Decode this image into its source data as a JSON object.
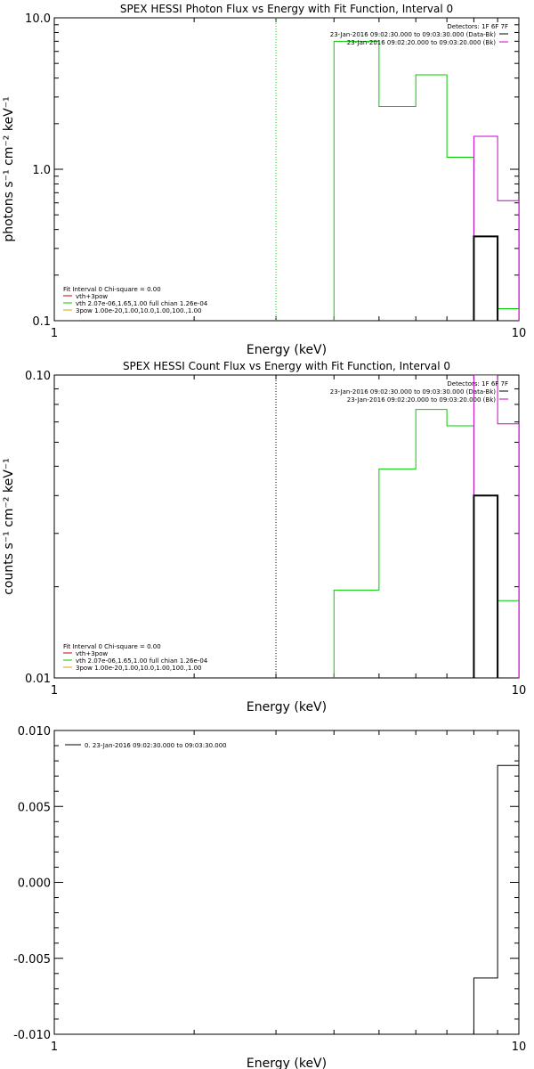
{
  "chart_data": [
    {
      "type": "line",
      "title": "SPEX HESSI Photon Flux vs Energy with Fit Function, Interval 0",
      "xlabel": "Energy (keV)",
      "ylabel": "photons s⁻¹ cm⁻² keV⁻¹",
      "xscale": "log",
      "yscale": "log",
      "xlim": [
        1,
        10
      ],
      "ylim": [
        0.1,
        10
      ],
      "xticks": [
        {
          "value": 1,
          "label": "1"
        },
        {
          "value": 10,
          "label": "10"
        }
      ],
      "yticks": [
        {
          "value": 0.1,
          "label": "0.1"
        },
        {
          "value": 1,
          "label": "1.0"
        },
        {
          "value": 10,
          "label": "10.0"
        }
      ],
      "vlines": [
        {
          "x": 3.0,
          "color": "#00cc00",
          "style": "dotted"
        }
      ],
      "legend_top": {
        "header": "Detectors: 1F 6F 7F",
        "entries": [
          {
            "text": "23-Jan-2016 09:02:30.000 to 09:03:30.000 (Data-Bk)",
            "color": "#000000"
          },
          {
            "text": "23-Jan-2016 09:02:20.000 to 09:03:20.000 (Bk)",
            "color": "#cc00cc"
          }
        ]
      },
      "legend_bottom": {
        "header": "Fit Interval 0   Chi-square = 0.00",
        "entries": [
          {
            "text": "vth+3pow",
            "color": "#cc0000"
          },
          {
            "text": "vth 2.07e-06,1.65,1.00  full chian 1.26e-04",
            "color": "#00cc00"
          },
          {
            "text": "3pow 1.00e-20,1.00,10.0,1.00,100.,1.00",
            "color": "#ccaa00"
          }
        ]
      },
      "series": [
        {
          "color": "#00cc00",
          "line_width": 1,
          "edges": [
            4,
            5,
            6,
            7,
            8,
            9,
            10
          ],
          "values": [
            7.0,
            2.6,
            4.2,
            1.2,
            0.36,
            0.12
          ]
        },
        {
          "color": "#cc00cc",
          "line_width": 1,
          "edges": [
            8,
            9,
            10
          ],
          "values": [
            1.65,
            0.62
          ]
        },
        {
          "color": "#000000",
          "line_width": 2,
          "edges": [
            8,
            9
          ],
          "values": [
            0.36
          ]
        }
      ]
    },
    {
      "type": "line",
      "title": "SPEX HESSI Count Flux vs Energy with Fit Function, Interval 0",
      "xlabel": "Energy (keV)",
      "ylabel": "counts s⁻¹ cm⁻² keV⁻¹",
      "xscale": "log",
      "yscale": "log",
      "xlim": [
        1,
        10
      ],
      "ylim": [
        0.01,
        0.1
      ],
      "xticks": [
        {
          "value": 1,
          "label": "1"
        },
        {
          "value": 10,
          "label": "10"
        }
      ],
      "yticks": [
        {
          "value": 0.01,
          "label": "0.01"
        },
        {
          "value": 0.1,
          "label": "0.10"
        }
      ],
      "vlines": [
        {
          "x": 3.0,
          "color": "#000000",
          "style": "dotted"
        }
      ],
      "legend_top": {
        "header": "Detectors: 1F 6F 7F",
        "entries": [
          {
            "text": "23-Jan-2016 09:02:30.000 to 09:03:30.000 (Data-Bk)",
            "color": "#000000"
          },
          {
            "text": "23-Jan-2016 09:02:20.000 to 09:03:20.000 (Bk)",
            "color": "#cc00cc"
          }
        ]
      },
      "legend_bottom": {
        "header": "Fit Interval 0   Chi-square = 0.00",
        "entries": [
          {
            "text": "vth+3pow",
            "color": "#cc0000"
          },
          {
            "text": "vth 2.07e-06,1.65,1.00  full chian 1.26e-04",
            "color": "#00cc00"
          },
          {
            "text": "3pow 1.00e-20,1.00,10.0,1.00,100.,1.00",
            "color": "#ccaa00"
          }
        ]
      },
      "series": [
        {
          "color": "#00cc00",
          "line_width": 1,
          "edges": [
            4,
            5,
            6,
            7,
            8,
            9,
            10
          ],
          "values": [
            0.0195,
            0.049,
            0.077,
            0.068,
            0.04,
            0.018
          ]
        },
        {
          "color": "#cc00cc",
          "line_width": 1,
          "edges": [
            8,
            9,
            10
          ],
          "values": [
            0.1,
            0.069
          ]
        },
        {
          "color": "#000000",
          "line_width": 2,
          "edges": [
            8,
            9
          ],
          "values": [
            0.04
          ]
        }
      ]
    },
    {
      "type": "line",
      "title": "",
      "xlabel": "Energy (keV)",
      "ylabel": "",
      "xscale": "log",
      "yscale": "linear",
      "xlim": [
        1,
        10
      ],
      "ylim": [
        -0.01,
        0.01
      ],
      "xticks": [
        {
          "value": 1,
          "label": "1"
        },
        {
          "value": 10,
          "label": "10"
        }
      ],
      "yticks": [
        {
          "value": 0.01,
          "label": "0.010"
        },
        {
          "value": 0.005,
          "label": "0.005"
        },
        {
          "value": 0.0,
          "label": "0.000"
        },
        {
          "value": -0.005,
          "label": "-0.005"
        },
        {
          "value": -0.01,
          "label": "-0.010"
        }
      ],
      "vlines": [],
      "legend_top": {
        "header": "",
        "entries": [
          {
            "text": "0. 23-Jan-2016 09:02:30.000 to 09:03:30.000",
            "color": "#000000"
          }
        ]
      },
      "legend_bottom": {
        "header": "",
        "entries": []
      },
      "series": [
        {
          "color": "#000000",
          "line_width": 1,
          "baseline": -0.01,
          "edges": [
            8,
            9,
            10
          ],
          "values": [
            -0.0063,
            0.0077
          ]
        }
      ]
    }
  ]
}
